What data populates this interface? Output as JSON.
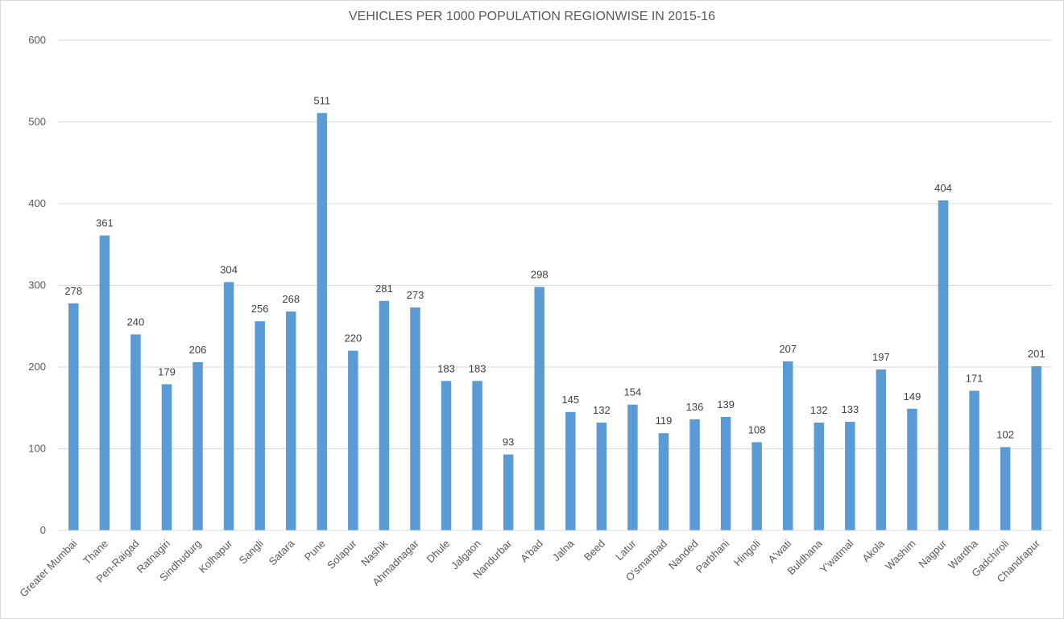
{
  "chart_data": {
    "type": "bar",
    "title": "VEHICLES PER 1000 POPULATION REGIONWISE IN 2015-16",
    "xlabel": "",
    "ylabel": "",
    "ylim": [
      0,
      600
    ],
    "yticks": [
      0,
      100,
      200,
      300,
      400,
      500,
      600
    ],
    "grid": true,
    "legend": "none",
    "bar_color": "#5b9bd5",
    "categories": [
      "Greater Mumbai",
      "Thane",
      "Pen-Raigad",
      "Ratnagiri",
      "Sindhudurg",
      "Kolhapur",
      "Sangli",
      "Satara",
      "Pune",
      "Solapur",
      "Nashik",
      "Ahmadnagar",
      "Dhule",
      "Jalgaon",
      "Nandurbar",
      "A'bad",
      "Jalna",
      "Beed",
      "Latur",
      "O'smanbad",
      "Nanded",
      "Parbhani",
      "Hingoli",
      "A'wati",
      "Buldhana",
      "Y'watmal",
      "Akola",
      "Washim",
      "Nagpur",
      "Wardha",
      "Gadchiroli",
      "Chandrapur"
    ],
    "values": [
      278,
      361,
      240,
      179,
      206,
      304,
      256,
      268,
      511,
      220,
      281,
      273,
      183,
      183,
      93,
      298,
      145,
      132,
      154,
      119,
      136,
      139,
      108,
      207,
      132,
      133,
      197,
      149,
      404,
      171,
      102,
      201
    ]
  }
}
